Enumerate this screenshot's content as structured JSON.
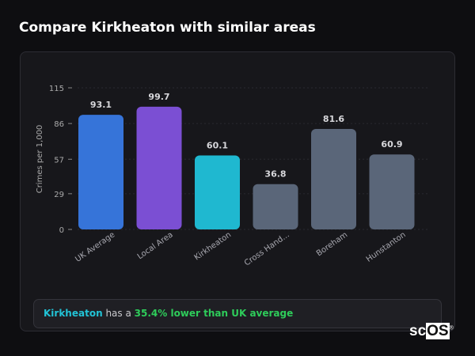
{
  "title": "Compare Kirkheaton with similar areas",
  "chart_data": {
    "type": "bar",
    "categories": [
      "UK Average",
      "Local Area",
      "Kirkheaton",
      "Cross Hand...",
      "Boreham",
      "Hunstanton"
    ],
    "values": [
      93.1,
      99.7,
      60.1,
      36.8,
      81.6,
      60.9
    ],
    "value_labels": [
      "93.1",
      "99.7",
      "60.1",
      "36.8",
      "81.6",
      "60.9"
    ],
    "colors": [
      "#3674d9",
      "#7b4fd3",
      "#1fb8d0",
      "#5a6679",
      "#5a6679",
      "#5a6679"
    ],
    "ylabel": "Crimes per 1,000",
    "yticks": [
      0,
      29,
      57,
      86,
      115
    ],
    "ylim": [
      0,
      115
    ],
    "grid": true
  },
  "summary": {
    "place": "Kirkheaton",
    "middle": " has a ",
    "comparison": "35.4% lower than UK average"
  },
  "logo": {
    "text_a": "sc",
    "text_b": "OS",
    "mark": "®"
  }
}
